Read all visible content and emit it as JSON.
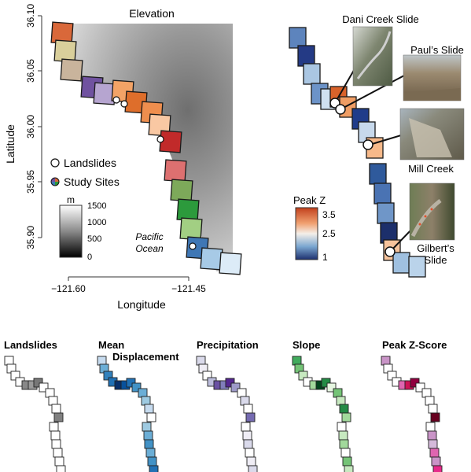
{
  "elevation_map": {
    "title": "Elevation",
    "ylabel": "Latitude",
    "xlabel": "Longitude",
    "yticks": [
      "36.10",
      "36.05",
      "36.00",
      "35.95",
      "35.90"
    ],
    "xticks": [
      "−121.60",
      "−121.45"
    ],
    "ocean_label_1": "Pacific",
    "ocean_label_2": "Ocean",
    "legend": {
      "landslides": "Landslides",
      "study_sites": "Study Sites"
    },
    "elevation_scale": {
      "unit": "m",
      "labels": [
        "1500",
        "1000",
        "500",
        "0"
      ]
    }
  },
  "peak_z_map": {
    "legend_title": "Peak Z",
    "legend_labels": [
      "3.5",
      "2.5",
      "1"
    ],
    "slides": [
      {
        "name": "Dani Creek Slide"
      },
      {
        "name": "Paul’s Slide"
      },
      {
        "name": "Mill Creek"
      },
      {
        "name": "Gilbert’s",
        "name_line2": "Slide"
      }
    ]
  },
  "small_maps": [
    {
      "title": "Landslides",
      "palette": "gray",
      "colors": [
        "#ffffff",
        "#ffffff",
        "#ffffff",
        "#ffffff",
        "#888888",
        "#9a9a9a",
        "#777777",
        "#ffffff",
        "#ffffff",
        "#ffffff",
        "#ffffff",
        "#808080",
        "#ffffff",
        "#ffffff",
        "#ffffff",
        "#ffffff",
        "#ffffff",
        "#ffffff",
        "#ffffff",
        "#999999",
        "#ffffff"
      ]
    },
    {
      "title": "Mean",
      "title_line2": "Displacement",
      "palette": "blue",
      "colors": [
        "#c6dbef",
        "#6baed6",
        "#3182bd",
        "#2171b5",
        "#08306b",
        "#08519c",
        "#2171b5",
        "#4292c6",
        "#6baed6",
        "#9ecae1",
        "#c6dbef",
        "#ffffff",
        "#9ecae1",
        "#6baed6",
        "#4292c6",
        "#6baed6",
        "#4292c6",
        "#2171b5",
        "#3182bd",
        "#6baed6",
        "#ffffff"
      ]
    },
    {
      "title": "Precipitation",
      "palette": "purple",
      "colors": [
        "#dadaeb",
        "#efedf5",
        "#ffffff",
        "#bcbddc",
        "#6a51a3",
        "#807dba",
        "#54278f",
        "#9e9ac8",
        "#ffffff",
        "#dadaeb",
        "#ffffff",
        "#756bb1",
        "#ffffff",
        "#efedf5",
        "#dadaeb",
        "#ffffff",
        "#efedf5",
        "#dadaeb",
        "#bcbddc",
        "#dadaeb",
        "#ffffff"
      ]
    },
    {
      "title": "Slope",
      "palette": "green",
      "colors": [
        "#41ab5d",
        "#74c476",
        "#c7e9c0",
        "#ffffff",
        "#a1d99b",
        "#00441b",
        "#238b45",
        "#e5f5e0",
        "#74c476",
        "#c7e9c0",
        "#238b45",
        "#a1d99b",
        "#ffffff",
        "#c7e9c0",
        "#a1d99b",
        "#ffffff",
        "#74c476",
        "#c7e9c0",
        "#e5f5e0",
        "#41ab5d",
        "#238b45"
      ]
    },
    {
      "title": "Peak Z-Score",
      "palette": "magenta",
      "colors": [
        "#c994c7",
        "#ffffff",
        "#ffffff",
        "#ffffff",
        "#df65b0",
        "#ce1256",
        "#91003f",
        "#ffffff",
        "#ffffff",
        "#ffffff",
        "#ffffff",
        "#67001f",
        "#ffffff",
        "#c994c7",
        "#d4b9da",
        "#df65b0",
        "#c994c7",
        "#e7298a",
        "#ce1256",
        "#ffffff",
        "#ffffff"
      ]
    }
  ]
}
